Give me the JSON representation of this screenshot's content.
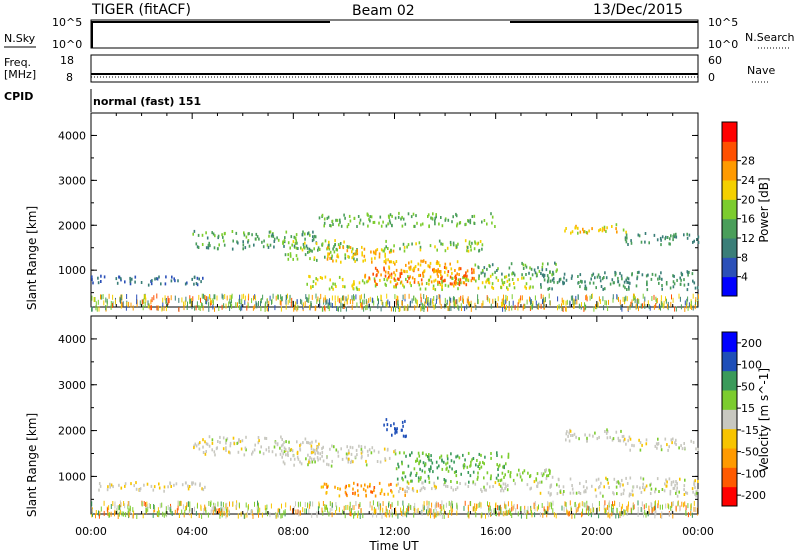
{
  "header": {
    "radar": "TIGER (fitACF)",
    "beam": "Beam 02",
    "date": "13/Dec/2015"
  },
  "strips": {
    "nsky_label": "N.Sky",
    "nsky_ticks": [
      "10^5",
      "10^0"
    ],
    "nsearch_label": "N.Search",
    "nsearch_ticks": [
      "10^5",
      "10^0"
    ],
    "freq_label_1": "Freq.",
    "freq_label_2": "[MHz]",
    "freq_ticks": [
      "18",
      "8"
    ],
    "nave_label": "Nave",
    "nave_ticks": [
      "60",
      "0"
    ],
    "cpid_label": "CPID",
    "cpid_value": "normal (fast) 151"
  },
  "chart_data": [
    {
      "type": "heatmap",
      "panel": "power",
      "ylabel": "Slant Range [km]",
      "yticks": [
        "4000",
        "3000",
        "2000",
        "1000"
      ],
      "ytick_values": [
        4000,
        3000,
        2000,
        1000
      ],
      "ylim": [
        180,
        4500
      ],
      "xlim": [
        0,
        24
      ],
      "colorbar_label": "Power [dB]",
      "colorbar_ticks": [
        "28",
        "24",
        "20",
        "16",
        "12",
        "8",
        "4"
      ],
      "colorbar_colors": [
        "#0000ff",
        "#2b50b8",
        "#3a7e78",
        "#4a9e5a",
        "#7ccc2e",
        "#f4d000",
        "#ff9a00",
        "#ff5000",
        "#ff0000"
      ],
      "regions": [
        {
          "x0": 0.0,
          "x1": 4.6,
          "y0": 700,
          "y1": 900,
          "v": 6
        },
        {
          "x0": 4.0,
          "x1": 9.0,
          "y0": 1500,
          "y1": 1900,
          "v": 12
        },
        {
          "x0": 7.5,
          "x1": 10.5,
          "y0": 1250,
          "y1": 1700,
          "v": 16
        },
        {
          "x0": 9.3,
          "x1": 12.0,
          "y0": 1200,
          "y1": 1550,
          "v": 22
        },
        {
          "x0": 11.5,
          "x1": 15.5,
          "y0": 1450,
          "y1": 1700,
          "v": 16
        },
        {
          "x0": 8.5,
          "x1": 17.5,
          "y0": 600,
          "y1": 900,
          "v": 18
        },
        {
          "x0": 10.8,
          "x1": 15.2,
          "y0": 700,
          "y1": 1100,
          "v": 26
        },
        {
          "x0": 11.5,
          "x1": 14.5,
          "y0": 900,
          "y1": 1250,
          "v": 22
        },
        {
          "x0": 15.0,
          "x1": 18.5,
          "y0": 900,
          "y1": 1200,
          "v": 12
        },
        {
          "x0": 18.7,
          "x1": 21.5,
          "y0": 1850,
          "y1": 2050,
          "v": 20
        },
        {
          "x0": 21.0,
          "x1": 24.0,
          "y0": 1600,
          "y1": 1850,
          "v": 10
        },
        {
          "x0": 17.5,
          "x1": 24.0,
          "y0": 600,
          "y1": 1000,
          "v": 10
        },
        {
          "x0": 9.0,
          "x1": 16.0,
          "y0": 2000,
          "y1": 2300,
          "v": 14
        }
      ]
    },
    {
      "type": "heatmap",
      "panel": "velocity",
      "ylabel": "Slant Range [km]",
      "xlabel": "Time UT",
      "yticks": [
        "4000",
        "3000",
        "2000",
        "1000"
      ],
      "ytick_values": [
        4000,
        3000,
        2000,
        1000
      ],
      "ylim": [
        180,
        4500
      ],
      "xlim": [
        0,
        24
      ],
      "xticks": [
        "00:00",
        "04:00",
        "08:00",
        "12:00",
        "16:00",
        "20:00",
        "00:00"
      ],
      "xtick_values": [
        0,
        4,
        8,
        12,
        16,
        20,
        24
      ],
      "colorbar_label": "Velocity [m s^-1]",
      "colorbar_ticks": [
        "200",
        "100",
        "50",
        "15",
        "-15",
        "-50",
        "-100",
        "-200"
      ],
      "colorbar_colors": [
        "#ff0000",
        "#ff5a00",
        "#ff9a00",
        "#f7c400",
        "#c8c8c0",
        "#7ccc2e",
        "#3a9a5a",
        "#1f4fb8",
        "#0000ff"
      ],
      "regions": [
        {
          "x0": 0.0,
          "x1": 4.6,
          "y0": 700,
          "y1": 900,
          "v": -10
        },
        {
          "x0": 4.0,
          "x1": 9.0,
          "y0": 1500,
          "y1": 1900,
          "v": 0
        },
        {
          "x0": 7.5,
          "x1": 12.0,
          "y0": 1250,
          "y1": 1700,
          "v": 0
        },
        {
          "x0": 9.0,
          "x1": 12.5,
          "y0": 600,
          "y1": 900,
          "v": -40
        },
        {
          "x0": 12.0,
          "x1": 17.5,
          "y0": 700,
          "y1": 900,
          "v": 0
        },
        {
          "x0": 12.0,
          "x1": 16.5,
          "y0": 900,
          "y1": 1550,
          "v": 50
        },
        {
          "x0": 16.5,
          "x1": 18.3,
          "y0": 900,
          "y1": 1200,
          "v": 30
        },
        {
          "x0": 11.5,
          "x1": 12.5,
          "y0": 1900,
          "y1": 2300,
          "v": 150
        },
        {
          "x0": 18.7,
          "x1": 21.5,
          "y0": 1800,
          "y1": 2050,
          "v": 0
        },
        {
          "x0": 21.0,
          "x1": 24.0,
          "y0": 1600,
          "y1": 1850,
          "v": 0
        },
        {
          "x0": 17.5,
          "x1": 24.0,
          "y0": 600,
          "y1": 1000,
          "v": 0
        }
      ]
    }
  ]
}
